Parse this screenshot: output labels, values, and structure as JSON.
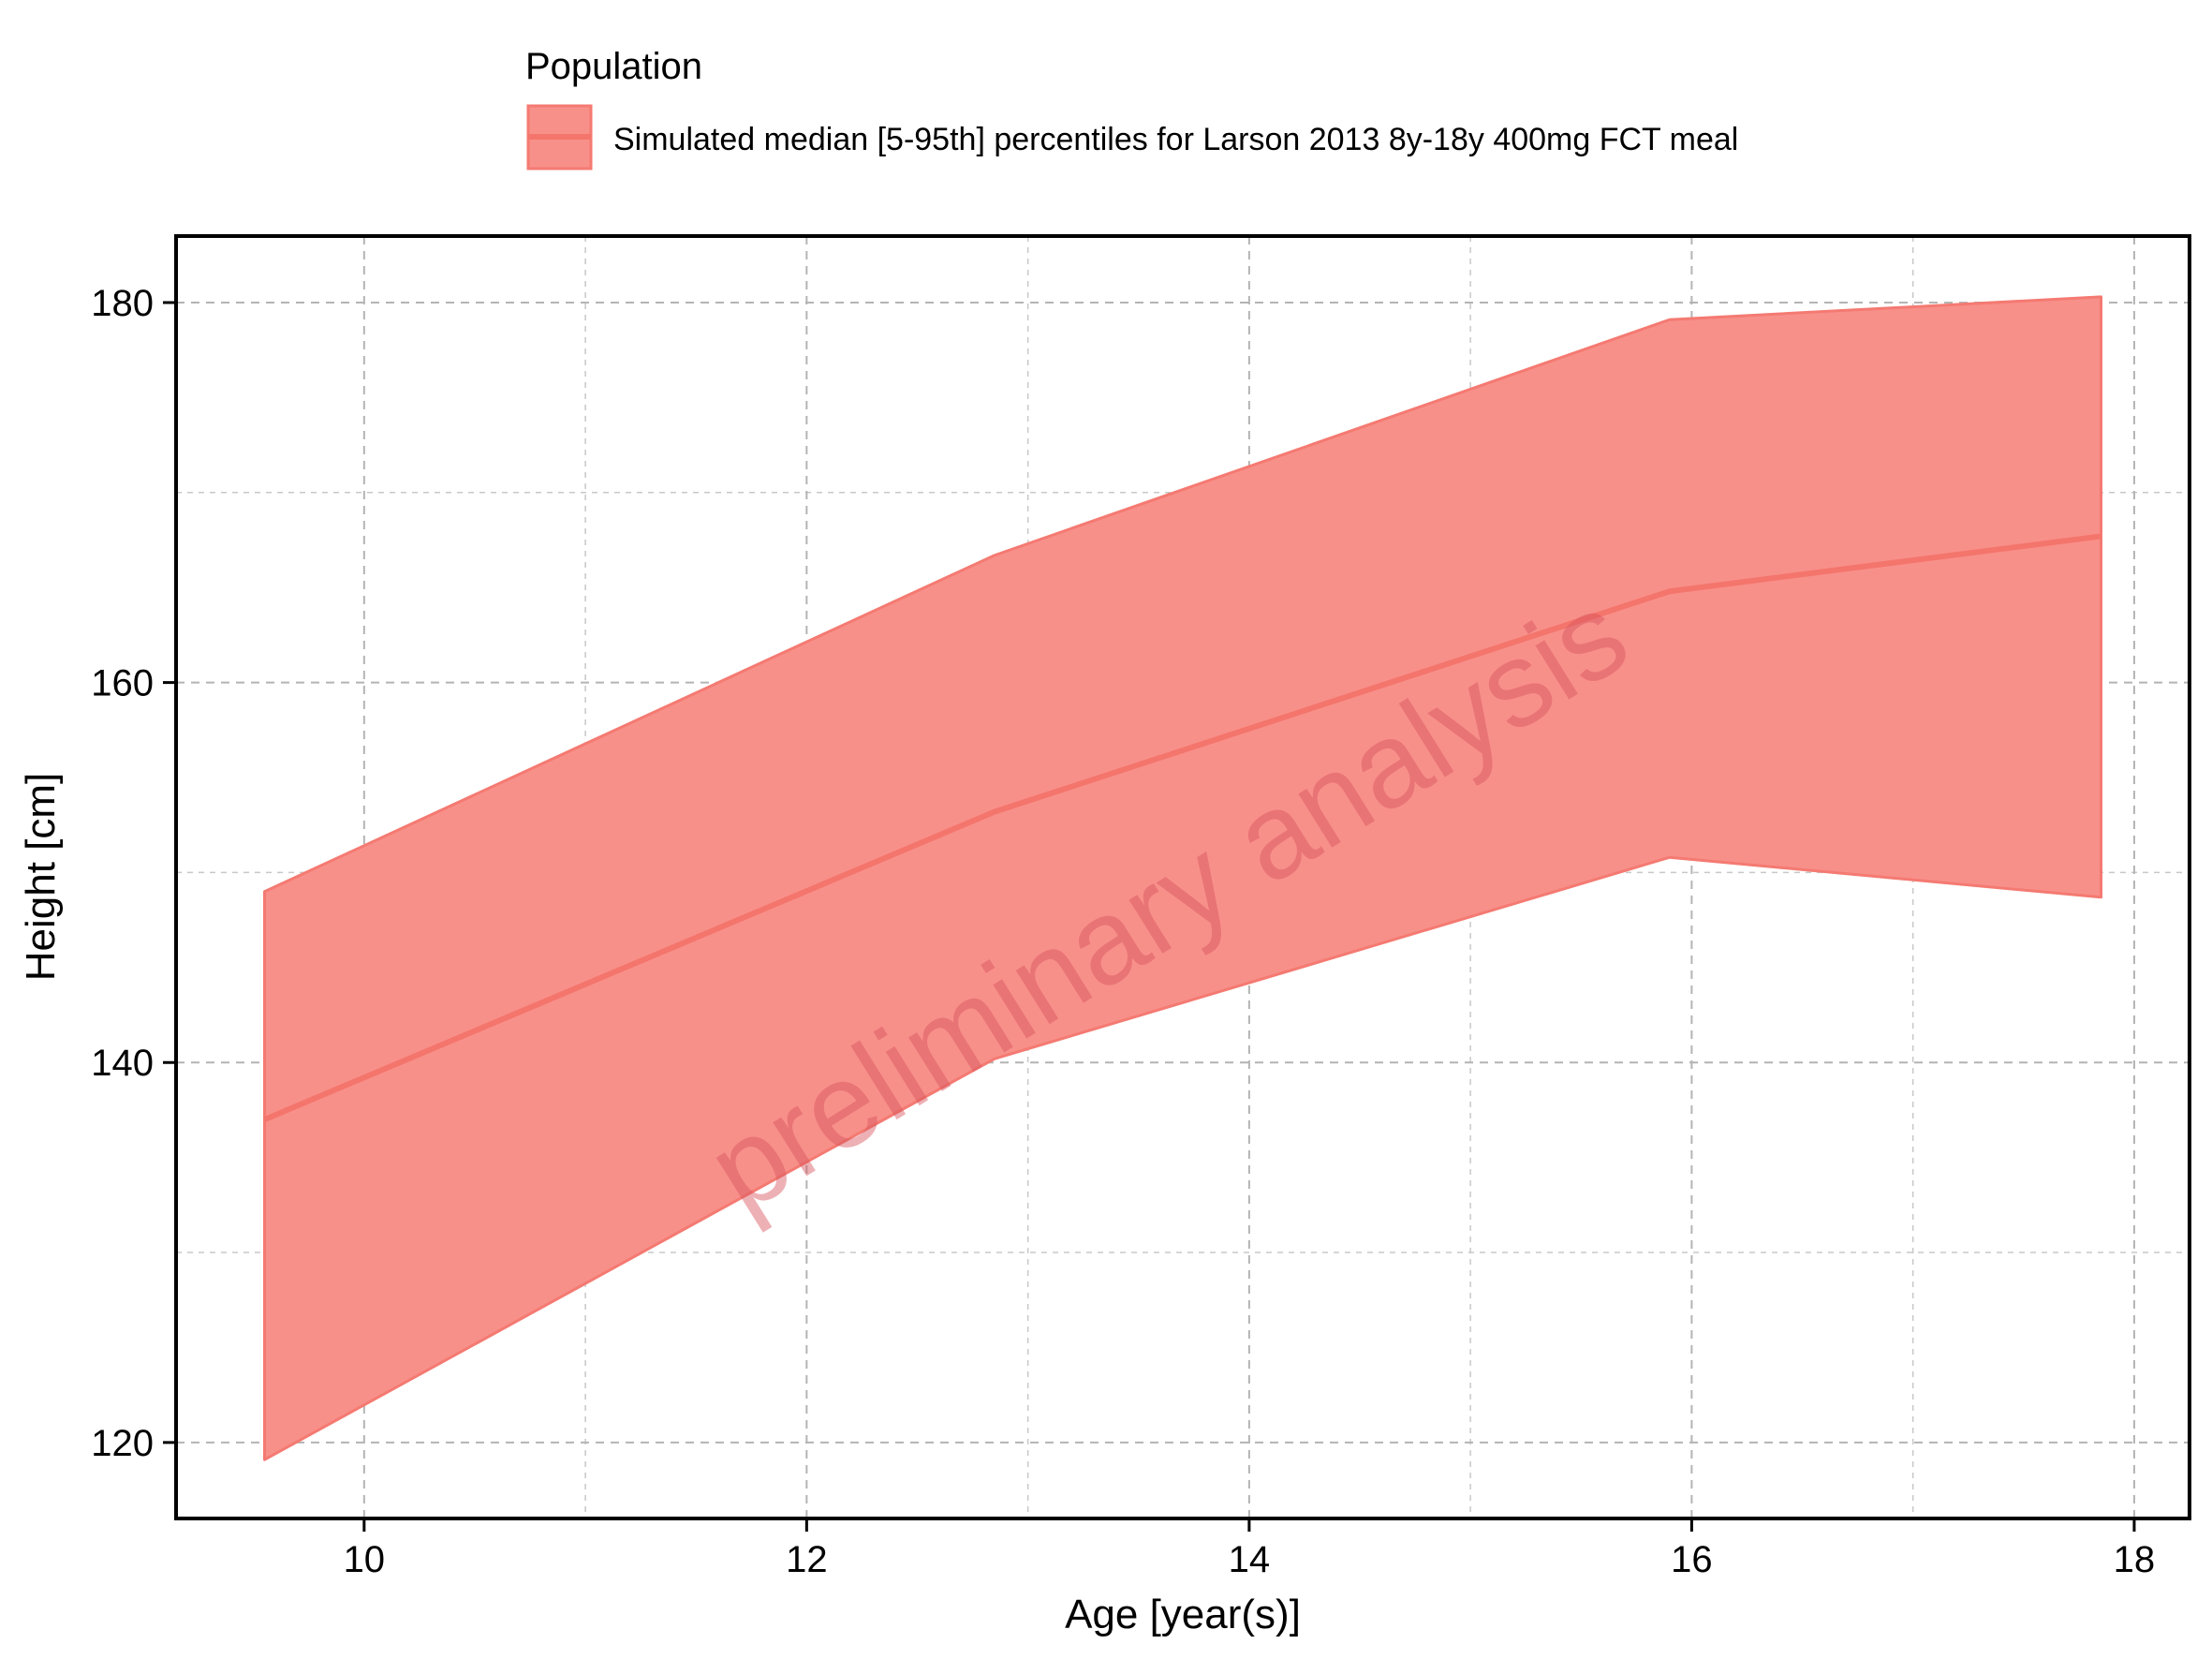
{
  "chart_data": {
    "type": "area",
    "xlabel": "Age [year(s)]",
    "ylabel": "Height [cm]",
    "xlim": [
      9.15,
      18.25
    ],
    "ylim": [
      116,
      183.5
    ],
    "xticks": [
      10,
      12,
      14,
      16,
      18
    ],
    "xtick_labels": [
      "10",
      "12",
      "14",
      "16",
      "18"
    ],
    "xminor": [
      11,
      13,
      15,
      17
    ],
    "yticks": [
      120,
      140,
      160,
      180
    ],
    "ytick_labels": [
      "120",
      "140",
      "160",
      "180"
    ],
    "yminor": [
      130,
      150,
      170
    ],
    "grid": true,
    "legend": {
      "title": "Population",
      "placement": "top",
      "entries": [
        "Simulated  median [5-95th] percentiles for Larson 2013 8y-18y 400mg FCT meal"
      ]
    },
    "watermark": "preliminary analysis",
    "colors": {
      "ribbon_fill": "#f8908a",
      "ribbon_edge": "#f47a72",
      "median_line": "#f4756c",
      "grid": "#c8c8c8",
      "watermark": "#d8525a"
    },
    "series": [
      {
        "x": [
          9.55,
          12.85,
          15.9,
          17.85
        ],
        "median": [
          137.0,
          153.2,
          164.8,
          167.7
        ],
        "p5": [
          119.1,
          140.2,
          150.8,
          148.7
        ],
        "p95": [
          149.0,
          166.7,
          179.1,
          180.3
        ]
      }
    ]
  }
}
